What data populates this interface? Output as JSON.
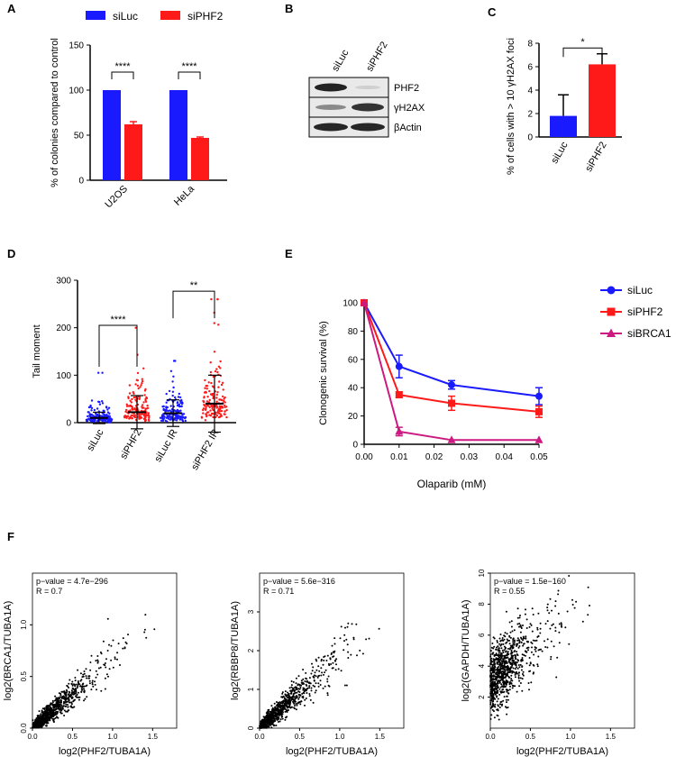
{
  "panel_letters": {
    "a": "A",
    "b": "B",
    "c": "C",
    "d": "D",
    "e": "E",
    "f": "F"
  },
  "colors": {
    "siLuc": "#1a1aff",
    "siPHF2": "#ff1a1a",
    "siBRCA1": "#cc1a80",
    "black": "#000000"
  },
  "blot": {
    "lanes": [
      "siLuc",
      "siPHF2"
    ],
    "rows": [
      "PHF2",
      "γH2AX",
      "βActin"
    ]
  },
  "chart_data": [
    {
      "id": "A",
      "type": "bar",
      "legend": [
        "siLuc",
        "siPHF2"
      ],
      "legend_position": "top",
      "categories": [
        "U2OS",
        "HeLa"
      ],
      "series": [
        {
          "name": "siLuc",
          "values": [
            100,
            100
          ],
          "errors": [
            0,
            0
          ]
        },
        {
          "name": "siPHF2",
          "values": [
            62,
            47
          ],
          "errors": [
            3,
            1
          ]
        }
      ],
      "ylabel": "% of colonies compared to control",
      "ylim": [
        0,
        150
      ],
      "yticks": [
        "0",
        "50",
        "100",
        "150"
      ],
      "significance": [
        "****",
        "****"
      ]
    },
    {
      "id": "C",
      "type": "bar",
      "categories": [
        "siLuc",
        "siPHF2"
      ],
      "values": [
        1.8,
        6.2
      ],
      "errors": [
        1.8,
        0.9
      ],
      "ylabel": "% of cells with > 10 γH2AX foci",
      "ylim": [
        0,
        8
      ],
      "yticks": [
        "0",
        "2",
        "4",
        "6",
        "8"
      ],
      "significance": "*"
    },
    {
      "id": "D",
      "type": "scatter",
      "categories": [
        "siLuc",
        "siPHF2",
        "siLuc IR",
        "siPHF2 IR"
      ],
      "category_colors": [
        "siLuc",
        "siPHF2",
        "siLuc",
        "siPHF2"
      ],
      "means": [
        10,
        22,
        20,
        40
      ],
      "sd": [
        12,
        35,
        28,
        60
      ],
      "max": [
        105,
        200,
        130,
        260
      ],
      "ylabel": "Tail moment",
      "ylim": [
        0,
        300
      ],
      "yticks": [
        "0",
        "100",
        "200",
        "300"
      ],
      "significance": [
        "****",
        "**"
      ]
    },
    {
      "id": "E",
      "type": "line",
      "x": [
        0,
        0.01,
        0.025,
        0.05
      ],
      "series": [
        {
          "name": "siLuc",
          "values": [
            100,
            55,
            42,
            34
          ],
          "errors": [
            0,
            8,
            3,
            6
          ],
          "marker": "circle"
        },
        {
          "name": "siPHF2",
          "values": [
            100,
            35,
            29,
            23
          ],
          "errors": [
            0,
            2,
            5,
            4
          ],
          "marker": "square"
        },
        {
          "name": "siBRCA1",
          "values": [
            100,
            9,
            3,
            3
          ],
          "errors": [
            0,
            3,
            0,
            0
          ],
          "marker": "triangle"
        }
      ],
      "xlabel": "Olaparib (mM)",
      "ylabel": "Clonogenic survival (%)",
      "xlim": [
        0,
        0.05
      ],
      "ylim": [
        0,
        100
      ],
      "xticks": [
        "0.00",
        "0.01",
        "0.02",
        "0.03",
        "0.04",
        "0.05"
      ],
      "yticks": [
        "0",
        "20",
        "40",
        "60",
        "80",
        "100"
      ],
      "legend_position": "right"
    },
    {
      "id": "F1",
      "type": "scatter",
      "annotation": [
        "p−value = 4.7e−296",
        "R = 0.7"
      ],
      "xlabel": "log2(PHF2/TUBA1A)",
      "ylabel": "log2(BRCA1/TUBA1A)",
      "xlim": [
        0,
        1.8
      ],
      "ylim": [
        0,
        1.5
      ],
      "xticks": [
        "0.0",
        "0.5",
        "1.0",
        "1.5"
      ],
      "yticks": [
        "0.0",
        "0.5",
        "1.0"
      ]
    },
    {
      "id": "F2",
      "type": "scatter",
      "annotation": [
        "p−value = 5.6e−316",
        "R = 0.71"
      ],
      "xlabel": "log2(PHF2/TUBA1A)",
      "ylabel": "log2(RBBP8/TUBA1A)",
      "xlim": [
        0,
        1.8
      ],
      "ylim": [
        0,
        4
      ],
      "xticks": [
        "0.0",
        "0.5",
        "1.0",
        "1.5"
      ],
      "yticks": [
        "0",
        "1",
        "2",
        "3"
      ]
    },
    {
      "id": "F3",
      "type": "scatter",
      "annotation": [
        "p−value = 1.5e−160",
        "R = 0.55"
      ],
      "xlabel": "log2(PHF2/TUBA1A)",
      "ylabel": "log2(GAPDH/TUBA1A)",
      "xlim": [
        0,
        1.8
      ],
      "ylim": [
        0,
        10
      ],
      "xticks": [
        "0.0",
        "0.5",
        "1.0",
        "1.5"
      ],
      "yticks": [
        "2",
        "4",
        "6",
        "8",
        "10"
      ]
    }
  ]
}
